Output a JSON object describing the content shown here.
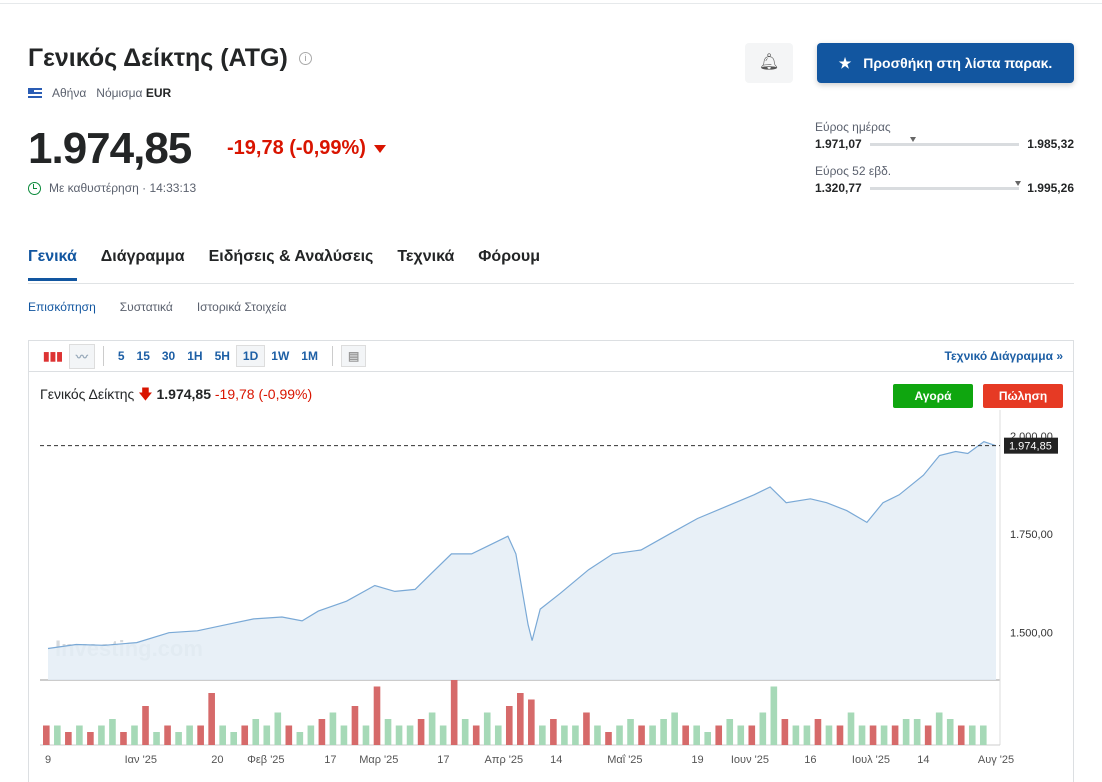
{
  "header": {
    "title": "Γενικός Δείκτης (ATG)",
    "exchange": "Αθήνα",
    "currency_label": "Νόμισμα",
    "currency": "EUR",
    "price": "1.974,85",
    "change": "-19,78 (-0,99%)",
    "delay": "Με καθυστέρηση · 14:33:13",
    "watchlist_button": "Προσθήκη στη λίστα παρακ.",
    "icons": {
      "alert": "bell-plus-icon",
      "watch": "star-icon",
      "flag": "greece-flag-icon",
      "clock": "clock-icon"
    }
  },
  "ranges": {
    "day": {
      "label": "Εύρος ημέρας",
      "low": "1.971,07",
      "high": "1.985,32",
      "position": 0.27
    },
    "week52": {
      "label": "Εύρος 52 εβδ.",
      "low": "1.320,77",
      "high": "1.995,26",
      "position": 0.97
    }
  },
  "tabs": [
    "Γενικά",
    "Διάγραμμα",
    "Ειδήσεις & Αναλύσεις",
    "Τεχνικά",
    "Φόρουμ"
  ],
  "subtabs": [
    "Επισκόπηση",
    "Συστατικά",
    "Ιστορικά Στοιχεία"
  ],
  "toolbar": {
    "intervals": [
      "5",
      "15",
      "30",
      "1H",
      "5H",
      "1D",
      "1W",
      "1M"
    ],
    "selected": "1D",
    "tech_link": "Τεχνικό Διάγραμμα »"
  },
  "chart_legend": {
    "name": "Γενικός Δείκτης",
    "price": "1.974,85",
    "change": "-19,78",
    "pct": "(-0,99%)"
  },
  "buy_label": "Αγορά",
  "sell_label": "Πώληση",
  "watermark": "Investing.com",
  "colors": {
    "accent": "#1256a0",
    "down": "#d91400",
    "up": "#0fa60f",
    "line": "#7aa9d6",
    "area": "#e4edf6",
    "vol_up": "#a6d9b7",
    "vol_down": "#d66a6a"
  },
  "chart_data": {
    "type": "area",
    "ylim": [
      1380,
      2040
    ],
    "yticks": [
      {
        "v": 2000,
        "label": "2.000,00"
      },
      {
        "v": 1750,
        "label": "1.750,00"
      },
      {
        "v": 1500,
        "label": "1.500,00"
      }
    ],
    "last_label": "1.974,85",
    "last": 1974.85,
    "xticks": [
      [
        "2024-12-09",
        "9"
      ],
      [
        "2025-01-01",
        "Ιαν '25"
      ],
      [
        "2025-01-20",
        "20"
      ],
      [
        "2025-02-01",
        "Φεβ '25"
      ],
      [
        "2025-02-17",
        "17"
      ],
      [
        "2025-03-01",
        "Μαρ '25"
      ],
      [
        "2025-03-17",
        "17"
      ],
      [
        "2025-04-01",
        "Απρ '25"
      ],
      [
        "2025-04-14",
        "14"
      ],
      [
        "2025-05-01",
        "Μαΐ '25"
      ],
      [
        "2025-05-19",
        "19"
      ],
      [
        "2025-06-01",
        "Ιουν '25"
      ],
      [
        "2025-06-16",
        "16"
      ],
      [
        "2025-07-01",
        "Ιουλ '25"
      ],
      [
        "2025-07-14",
        "14"
      ],
      [
        "2025-08-01",
        "Αυγ '25"
      ]
    ],
    "points": [
      [
        "2024-12-09",
        1460
      ],
      [
        "2024-12-16",
        1470
      ],
      [
        "2024-12-23",
        1468
      ],
      [
        "2024-12-31",
        1475
      ],
      [
        "2025-01-08",
        1500
      ],
      [
        "2025-01-15",
        1505
      ],
      [
        "2025-01-22",
        1520
      ],
      [
        "2025-01-29",
        1535
      ],
      [
        "2025-02-05",
        1540
      ],
      [
        "2025-02-10",
        1530
      ],
      [
        "2025-02-14",
        1555
      ],
      [
        "2025-02-21",
        1580
      ],
      [
        "2025-02-28",
        1620
      ],
      [
        "2025-03-05",
        1605
      ],
      [
        "2025-03-10",
        1610
      ],
      [
        "2025-03-14",
        1650
      ],
      [
        "2025-03-19",
        1700
      ],
      [
        "2025-03-24",
        1700
      ],
      [
        "2025-03-28",
        1720
      ],
      [
        "2025-04-02",
        1745
      ],
      [
        "2025-04-04",
        1700
      ],
      [
        "2025-04-07",
        1520
      ],
      [
        "2025-04-08",
        1480
      ],
      [
        "2025-04-10",
        1560
      ],
      [
        "2025-04-15",
        1600
      ],
      [
        "2025-04-22",
        1660
      ],
      [
        "2025-04-28",
        1700
      ],
      [
        "2025-05-05",
        1710
      ],
      [
        "2025-05-12",
        1750
      ],
      [
        "2025-05-19",
        1790
      ],
      [
        "2025-05-26",
        1820
      ],
      [
        "2025-06-02",
        1850
      ],
      [
        "2025-06-06",
        1870
      ],
      [
        "2025-06-10",
        1830
      ],
      [
        "2025-06-16",
        1840
      ],
      [
        "2025-06-20",
        1830
      ],
      [
        "2025-06-25",
        1810
      ],
      [
        "2025-06-30",
        1780
      ],
      [
        "2025-07-04",
        1830
      ],
      [
        "2025-07-08",
        1850
      ],
      [
        "2025-07-14",
        1900
      ],
      [
        "2025-07-18",
        1950
      ],
      [
        "2025-07-22",
        1960
      ],
      [
        "2025-07-25",
        1955
      ],
      [
        "2025-07-29",
        1985
      ],
      [
        "2025-08-01",
        1974.85
      ]
    ],
    "volume": [
      3,
      3,
      2,
      3,
      2,
      3,
      4,
      2,
      3,
      6,
      2,
      3,
      2,
      3,
      3,
      8,
      3,
      2,
      3,
      4,
      3,
      5,
      3,
      2,
      3,
      4,
      5,
      3,
      6,
      3,
      9,
      4,
      3,
      3,
      4,
      5,
      3,
      10,
      4,
      3,
      5,
      3,
      6,
      8,
      7,
      3,
      4,
      3,
      3,
      5,
      3,
      2,
      3,
      4,
      3,
      3,
      4,
      5,
      3,
      3,
      2,
      3,
      4,
      3,
      3,
      5,
      9,
      4,
      3,
      3,
      4,
      3,
      3,
      5,
      3,
      3,
      3,
      3,
      4,
      4,
      3,
      5,
      4,
      3,
      3,
      3
    ],
    "volume_down": [
      1,
      0,
      1,
      0,
      1,
      0,
      0,
      1,
      0,
      1,
      0,
      1,
      0,
      0,
      1,
      1,
      0,
      0,
      1,
      0,
      0,
      0,
      1,
      0,
      0,
      1,
      0,
      0,
      1,
      0,
      1,
      0,
      0,
      0,
      1,
      0,
      0,
      1,
      0,
      1,
      0,
      0,
      1,
      1,
      1,
      0,
      1,
      0,
      0,
      1,
      0,
      1,
      0,
      0,
      1,
      0,
      0,
      0,
      1,
      0,
      0,
      1,
      0,
      0,
      1,
      0,
      0,
      1,
      0,
      0,
      1,
      0,
      1,
      0,
      0,
      1,
      0,
      1,
      0,
      0,
      1,
      0,
      0,
      1,
      0,
      0
    ]
  }
}
